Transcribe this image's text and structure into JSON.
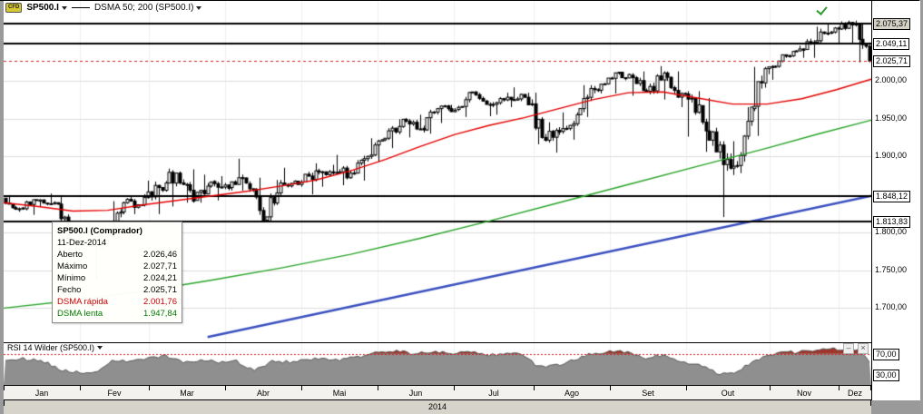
{
  "header": {
    "instrument_badge": "CFD",
    "instrument": "SP500.I",
    "indicator": "DSMA 50; 200 (SP500.I)"
  },
  "tooltip": {
    "title": "SP500.I (Comprador)",
    "date": "11-Dez-2014",
    "rows": [
      {
        "label": "Aberto",
        "value": "2.026,46",
        "color": "#000000"
      },
      {
        "label": "Máximo",
        "value": "2.027,71",
        "color": "#000000"
      },
      {
        "label": "Mínimo",
        "value": "2.024,21",
        "color": "#000000"
      },
      {
        "label": "Fecho",
        "value": "2.025,71",
        "color": "#000000"
      },
      {
        "label": "DSMA rápida",
        "value": "2.001,76",
        "color": "#cc0000"
      },
      {
        "label": "DSMA lenta",
        "value": "1.947,84",
        "color": "#007a00"
      }
    ]
  },
  "rsi_panel": {
    "title": "RSI 14 Wilder (SP500.I)",
    "minimize_glyph": "–",
    "close_glyph": "×"
  },
  "chart_data": {
    "type": "candlestick",
    "title": "SP500.I daily candlesticks with DSMA 50/200 overlays, Jan–Dez 2014",
    "price_range": [
      1655,
      2105
    ],
    "year": "2014",
    "months": [
      {
        "label": "Jan",
        "trading_days": 21
      },
      {
        "label": "Fev",
        "trading_days": 19
      },
      {
        "label": "Mar",
        "trading_days": 21
      },
      {
        "label": "Abr",
        "trading_days": 21
      },
      {
        "label": "Mai",
        "trading_days": 21
      },
      {
        "label": "Jun",
        "trading_days": 21
      },
      {
        "label": "Jul",
        "trading_days": 22
      },
      {
        "label": "Ago",
        "trading_days": 21
      },
      {
        "label": "Set",
        "trading_days": 21
      },
      {
        "label": "Out",
        "trading_days": 23
      },
      {
        "label": "Nov",
        "trading_days": 19
      },
      {
        "label": "Dez",
        "trading_days": 9
      }
    ],
    "y_axis_labels": [
      {
        "price": 2075.37,
        "text": "2.075,37",
        "style": "boxed-hl"
      },
      {
        "price": 2049.11,
        "text": "2.049,11",
        "style": "boxed"
      },
      {
        "price": 2025.71,
        "text": "2.025,71",
        "style": "boxed-current"
      },
      {
        "price": 2000,
        "text": "2.000,00",
        "style": "plain"
      },
      {
        "price": 1950,
        "text": "1.950,00",
        "style": "plain"
      },
      {
        "price": 1900,
        "text": "1.900,00",
        "style": "plain"
      },
      {
        "price": 1848.12,
        "text": "1.848,12",
        "style": "boxed"
      },
      {
        "price": 1813.83,
        "text": "1.813,83",
        "style": "boxed"
      },
      {
        "price": 1800,
        "text": "1.800,00",
        "style": "plain"
      },
      {
        "price": 1750,
        "text": "1.750,00",
        "style": "plain"
      },
      {
        "price": 1700,
        "text": "1.700,00",
        "style": "plain"
      }
    ],
    "levels_black": [
      2075.37,
      2049.11,
      1848.12,
      1813.83
    ],
    "level_current": 2025.71,
    "gridlines": [
      2000,
      1950,
      1900,
      1800,
      1750,
      1700
    ],
    "weekly_ohlc": [
      [
        1845,
        1849,
        1827,
        1831
      ],
      [
        1832,
        1843,
        1823,
        1842
      ],
      [
        1841,
        1851,
        1834,
        1839
      ],
      [
        1839,
        1849,
        1790,
        1790
      ],
      [
        1789,
        1798,
        1770,
        1783
      ],
      [
        1783,
        1799,
        1737,
        1797
      ],
      [
        1797,
        1841,
        1791,
        1839
      ],
      [
        1839,
        1847,
        1824,
        1836
      ],
      [
        1836,
        1868,
        1824,
        1859
      ],
      [
        1859,
        1884,
        1834,
        1878
      ],
      [
        1878,
        1883,
        1839,
        1841
      ],
      [
        1842,
        1876,
        1839,
        1866
      ],
      [
        1867,
        1874,
        1842,
        1858
      ],
      [
        1859,
        1897,
        1855,
        1865
      ],
      [
        1864,
        1872,
        1814,
        1816
      ],
      [
        1816,
        1869,
        1815,
        1865
      ],
      [
        1865,
        1885,
        1859,
        1863
      ],
      [
        1863,
        1891,
        1850,
        1881
      ],
      [
        1881,
        1889,
        1860,
        1878
      ],
      [
        1878,
        1902,
        1862,
        1878
      ],
      [
        1878,
        1901,
        1868,
        1900
      ],
      [
        1900,
        1924,
        1893,
        1924
      ],
      [
        1924,
        1949,
        1911,
        1949
      ],
      [
        1949,
        1955,
        1925,
        1936
      ],
      [
        1937,
        1964,
        1930,
        1963
      ],
      [
        1963,
        1968,
        1944,
        1961
      ],
      [
        1962,
        1985,
        1952,
        1985
      ],
      [
        1985,
        1986,
        1953,
        1968
      ],
      [
        1968,
        1984,
        1955,
        1978
      ],
      [
        1978,
        1991,
        1965,
        1978
      ],
      [
        1978,
        1984,
        1916,
        1925
      ],
      [
        1925,
        1945,
        1905,
        1932
      ],
      [
        1933,
        1958,
        1922,
        1955
      ],
      [
        1955,
        1994,
        1952,
        1988
      ],
      [
        1988,
        2005,
        1983,
        2003
      ],
      [
        2003,
        2011,
        1983,
        2008
      ],
      [
        2007,
        2012,
        1980,
        1986
      ],
      [
        1986,
        2019,
        1975,
        2010
      ],
      [
        2010,
        2012,
        1965,
        1983
      ],
      [
        1983,
        1986,
        1926,
        1968
      ],
      [
        1967,
        1977,
        1906,
        1906
      ],
      [
        1906,
        1920,
        1820,
        1887
      ],
      [
        1888,
        1965,
        1878,
        1965
      ],
      [
        1963,
        2018,
        1927,
        2018
      ],
      [
        2018,
        2034,
        2001,
        2032
      ],
      [
        2032,
        2046,
        2030,
        2040
      ],
      [
        2041,
        2071,
        2030,
        2064
      ],
      [
        2064,
        2076,
        2049,
        2068
      ],
      [
        2068,
        2079,
        2049,
        2075
      ],
      [
        2075,
        2076,
        2024,
        2025.71
      ]
    ],
    "dsma_fast": {
      "name": "DSMA 50 (rápida)",
      "last_value": 2001.76,
      "color": "#e60000",
      "points": [
        [
          0,
          1839
        ],
        [
          0.04,
          1834
        ],
        [
          0.08,
          1828
        ],
        [
          0.12,
          1829
        ],
        [
          0.16,
          1836
        ],
        [
          0.2,
          1842
        ],
        [
          0.24,
          1848
        ],
        [
          0.28,
          1854
        ],
        [
          0.32,
          1861
        ],
        [
          0.36,
          1869
        ],
        [
          0.4,
          1881
        ],
        [
          0.44,
          1896
        ],
        [
          0.48,
          1913
        ],
        [
          0.52,
          1929
        ],
        [
          0.56,
          1941
        ],
        [
          0.6,
          1951
        ],
        [
          0.64,
          1963
        ],
        [
          0.68,
          1975
        ],
        [
          0.72,
          1984
        ],
        [
          0.76,
          1985
        ],
        [
          0.8,
          1977
        ],
        [
          0.84,
          1969
        ],
        [
          0.88,
          1969
        ],
        [
          0.92,
          1976
        ],
        [
          0.96,
          1988
        ],
        [
          1,
          2001.76
        ]
      ]
    },
    "dsma_slow": {
      "name": "DSMA 200 (lenta)",
      "last_value": 1947.84,
      "color": "#28a428",
      "points": [
        [
          0,
          1700
        ],
        [
          0.08,
          1710
        ],
        [
          0.16,
          1722
        ],
        [
          0.24,
          1737
        ],
        [
          0.32,
          1753
        ],
        [
          0.4,
          1771
        ],
        [
          0.48,
          1792
        ],
        [
          0.56,
          1815
        ],
        [
          0.64,
          1839
        ],
        [
          0.72,
          1863
        ],
        [
          0.8,
          1887
        ],
        [
          0.88,
          1911
        ],
        [
          0.94,
          1930
        ],
        [
          1,
          1947.84
        ]
      ]
    },
    "trendline": {
      "color": "#3a50c0",
      "from": [
        0.235,
        1662
      ],
      "to": [
        1,
        1848
      ]
    },
    "rsi": {
      "name": "RSI 14 Wilder",
      "overbought": 70,
      "oversold": 30,
      "display_range": [
        10,
        90
      ],
      "level_labels": [
        {
          "value": 70,
          "text": "70,00"
        },
        {
          "value": 30,
          "text": "30,00"
        }
      ],
      "weekly_values": [
        58,
        60,
        58,
        40,
        34,
        32,
        55,
        56,
        62,
        66,
        52,
        58,
        54,
        55,
        38,
        55,
        54,
        60,
        58,
        58,
        65,
        72,
        76,
        68,
        74,
        70,
        77,
        66,
        70,
        68,
        45,
        48,
        58,
        70,
        74,
        74,
        62,
        68,
        55,
        48,
        33,
        30,
        55,
        68,
        72,
        74,
        79,
        78,
        76,
        45
      ]
    },
    "colors": {
      "candle_up": "#ffffff",
      "candle_down": "#000000",
      "grid": "#dedede",
      "month_grid": "#f0f0f0",
      "level": "#000000",
      "current_price": "#d42020",
      "rsi_fill": "#8f8f8f",
      "rsi_overbought": "#a03428",
      "rsi_line": "#cc2222"
    }
  }
}
